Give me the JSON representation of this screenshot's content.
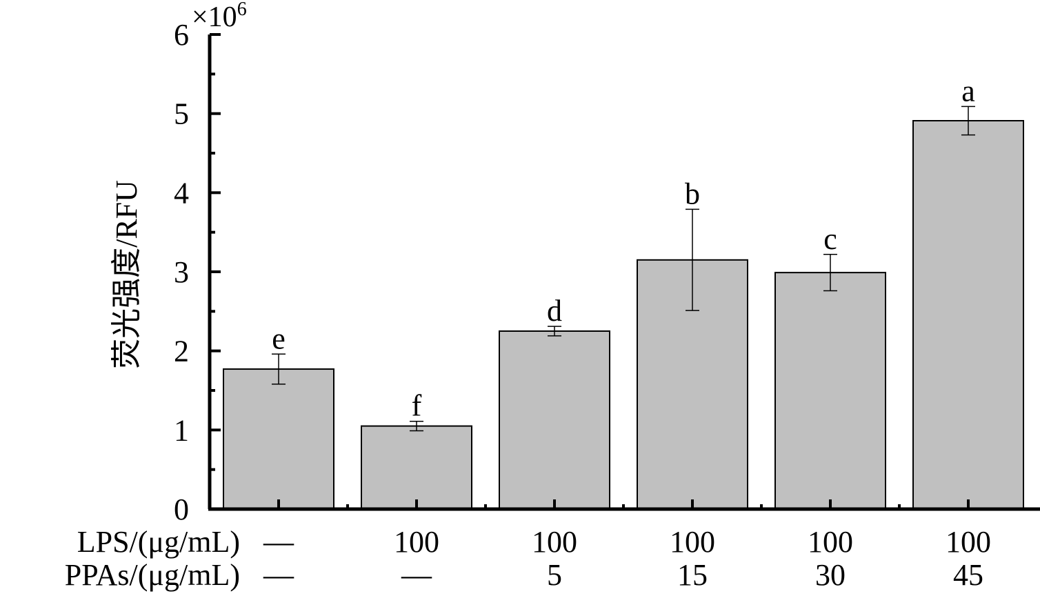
{
  "chart_data": {
    "type": "bar",
    "title": "",
    "ylabel": "荧光强度/RFU",
    "y_multiplier": "×10",
    "y_exponent": "6",
    "ylim": [
      0,
      6
    ],
    "y_ticks": [
      "0",
      "1",
      "2",
      "3",
      "4",
      "5",
      "6"
    ],
    "grid": false,
    "bar_color": "#c0c0c0",
    "row_labels": [
      "LPS/(μg/mL)",
      "PPAs/(μg/mL)"
    ],
    "categories": [
      {
        "lps": "—",
        "ppas": "—"
      },
      {
        "lps": "100",
        "ppas": "—"
      },
      {
        "lps": "100",
        "ppas": "5"
      },
      {
        "lps": "100",
        "ppas": "15"
      },
      {
        "lps": "100",
        "ppas": "30"
      },
      {
        "lps": "100",
        "ppas": "45"
      }
    ],
    "values": [
      1.77,
      1.05,
      2.25,
      3.15,
      2.99,
      4.91
    ],
    "errors": [
      0.19,
      0.06,
      0.06,
      0.64,
      0.23,
      0.18
    ],
    "significance": [
      "e",
      "f",
      "d",
      "b",
      "c",
      "a"
    ]
  }
}
